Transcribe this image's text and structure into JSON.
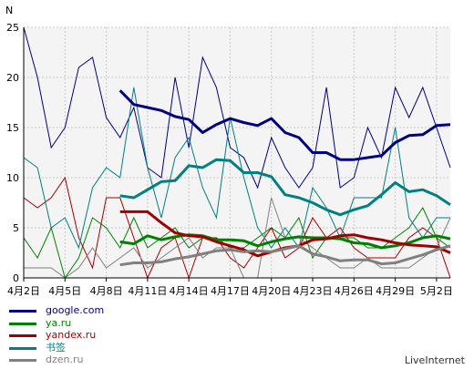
{
  "chart_data": {
    "type": "line",
    "ylabel": "N",
    "ylim": [
      0,
      25
    ],
    "yticks": [
      0,
      5,
      10,
      15,
      20,
      25
    ],
    "x_tick_labels": [
      "4月2日",
      "4月5日",
      "4月8日",
      "4月11日",
      "4月14日",
      "4月17日",
      "4月20日",
      "4月23日",
      "4月26日",
      "4月29日",
      "5月2日"
    ],
    "grid": true,
    "legend_position": "bottom-left",
    "series": [
      {
        "name": "google.com",
        "color": "#000080",
        "daily": [
          25,
          20,
          13,
          15,
          21,
          22,
          16,
          14,
          17,
          11,
          10,
          20,
          13,
          22,
          19,
          13,
          12,
          9,
          14,
          11,
          9,
          11,
          19,
          9,
          10,
          15,
          12,
          19,
          16,
          19,
          15,
          11
        ],
        "smooth_start": 7,
        "smooth": [
          18.7,
          17.3,
          17,
          16.7,
          16.1,
          15.8,
          14.5,
          15.3,
          15.9,
          15.5,
          15.2,
          15.9,
          14.5,
          14,
          12.5,
          12.5,
          11.8,
          11.8,
          12,
          12.2,
          13.5,
          14.2,
          14.3,
          15.2,
          15.3
        ]
      },
      {
        "name": "ya.ru",
        "color": "#008000",
        "daily": [
          4,
          2,
          5,
          0,
          2,
          6,
          5,
          3,
          6,
          3,
          4,
          5,
          3,
          4,
          4,
          3,
          3,
          4,
          5,
          4,
          6,
          2,
          4,
          4,
          4,
          3,
          3,
          4,
          5,
          7,
          4,
          3
        ],
        "smooth_start": 7,
        "smooth": [
          3.6,
          3.4,
          4.2,
          3.8,
          4.1,
          4.3,
          4.2,
          3.8,
          3.8,
          3.7,
          3.2,
          3.6,
          3.9,
          4.1,
          4,
          4,
          3.9,
          3.5,
          3.4,
          3,
          3.2,
          3.5,
          4,
          4.2,
          3.9
        ]
      },
      {
        "name": "yandex.ru",
        "color": "#a00000",
        "daily": [
          8,
          7,
          8,
          10,
          4,
          1,
          8,
          8,
          4,
          0,
          3,
          4,
          0,
          4,
          4,
          2,
          1,
          3,
          5,
          2,
          3,
          6,
          4,
          5,
          3,
          2,
          2,
          2,
          4,
          5,
          4,
          0
        ],
        "smooth_start": 7,
        "smooth": [
          6.6,
          6.6,
          6.6,
          5.5,
          4.5,
          4.2,
          4.1,
          3.6,
          3.2,
          2.8,
          2.2,
          2.6,
          3,
          3.2,
          3.8,
          3.9,
          4.2,
          4.3,
          4,
          3.8,
          3.5,
          3.3,
          3.2,
          3.1,
          2.5
        ]
      },
      {
        "name": "书签",
        "color": "#008080",
        "daily": [
          12,
          11,
          5,
          6,
          3,
          9,
          11,
          10,
          19,
          11,
          6,
          12,
          14,
          9,
          6,
          16,
          10,
          5,
          3,
          5,
          3,
          9,
          7,
          4,
          8,
          8,
          8,
          15,
          6,
          4,
          6,
          6
        ],
        "smooth_start": 7,
        "smooth": [
          8.2,
          8,
          8.8,
          9.6,
          9.7,
          11.2,
          11,
          11.8,
          11.7,
          10.5,
          10.5,
          10.1,
          8.3,
          8,
          7.5,
          6.8,
          6.3,
          6.8,
          7.2,
          8.3,
          9.5,
          8.6,
          8.8,
          8.2,
          7.3
        ]
      },
      {
        "name": "dzen.ru",
        "color": "#808080",
        "daily": [
          1,
          1,
          1,
          0,
          1,
          3,
          1,
          2,
          3,
          1,
          2,
          3,
          4,
          2,
          3,
          3,
          0,
          0,
          8,
          4,
          4,
          3,
          2,
          1,
          1,
          2,
          1,
          1,
          1,
          2,
          3,
          6
        ],
        "smooth_start": 7,
        "smooth": [
          1.3,
          1.5,
          1.5,
          1.6,
          1.9,
          2.1,
          2.4,
          2.7,
          2.8,
          2.6,
          2.7,
          2.6,
          2.9,
          3.2,
          2.4,
          2.1,
          1.7,
          1.8,
          1.8,
          1.4,
          1.5,
          1.9,
          2.3,
          2.8,
          3.2
        ]
      }
    ]
  },
  "footer": "LiveInternet"
}
